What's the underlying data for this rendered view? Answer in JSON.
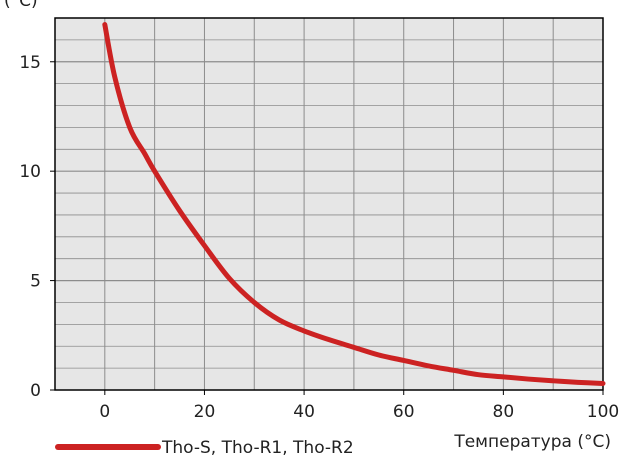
{
  "chart_data": {
    "type": "line",
    "title": "",
    "ylabel": "(°C)",
    "xlabel": "Температура (°C)",
    "xlim": [
      -10,
      100
    ],
    "ylim": [
      0,
      17
    ],
    "x_ticks": [
      0,
      20,
      40,
      60,
      80,
      100
    ],
    "y_ticks": [
      0,
      5,
      10,
      15
    ],
    "x_minor_step": 10,
    "y_minor_step": 1,
    "grid": true,
    "legend_position": "bottom-left",
    "colors": {
      "series": "#cc2222",
      "plot_background": "#e6e6e6",
      "grid": "#8c8c8c",
      "frame": "#000000"
    },
    "series": [
      {
        "name": "Tho-S, Tho-R1, Tho-R2",
        "x": [
          0,
          2,
          5,
          8,
          10,
          15,
          20,
          25,
          30,
          35,
          40,
          45,
          50,
          55,
          60,
          65,
          70,
          75,
          80,
          85,
          90,
          95,
          100
        ],
        "y": [
          16.7,
          14.3,
          12.0,
          10.8,
          10.0,
          8.2,
          6.6,
          5.1,
          4.0,
          3.2,
          2.7,
          2.3,
          1.95,
          1.6,
          1.35,
          1.1,
          0.9,
          0.7,
          0.6,
          0.5,
          0.42,
          0.35,
          0.3
        ]
      }
    ]
  }
}
